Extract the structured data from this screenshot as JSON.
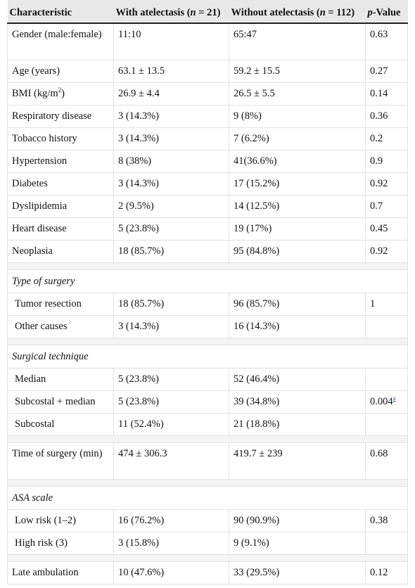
{
  "header": {
    "col1": "Characteristic",
    "col2_pre": "With atelectasis (",
    "col2_n": "n",
    "col2_post": " = 21)",
    "col3_pre": "Without atelectasis (",
    "col3_n": "n",
    "col3_post": " = 112)",
    "col4_p": "p",
    "col4_post": "-Value"
  },
  "rows": {
    "gender": {
      "label": "Gender (male:female)",
      "with": "11:10",
      "without": "65:47",
      "p": "0.63"
    },
    "age": {
      "label": "Age (years)",
      "with": "63.1 ± 13.5",
      "without": "59.2 ± 15.5",
      "p": "0.27"
    },
    "bmi": {
      "label_pre": "BMI (kg/m",
      "label_sup": "2",
      "label_post": ")",
      "with": "26.9 ± 4.4",
      "without": "26.5 ± 5.5",
      "p": "0.14"
    },
    "respiratory": {
      "label": "Respiratory disease",
      "with": "3 (14.3%)",
      "without": "9 (8%)",
      "p": "0.36"
    },
    "tobacco": {
      "label": "Tobacco history",
      "with": "3 (14.3%)",
      "without": "7 (6.2%)",
      "p": "0.2"
    },
    "hypertension": {
      "label": "Hypertension",
      "with": "8 (38%)",
      "without": "41(36.6%)",
      "p": "0.9"
    },
    "diabetes": {
      "label": "Diabetes",
      "with": "3 (14.3%)",
      "without": "17 (15.2%)",
      "p": "0.92"
    },
    "dyslipidemia": {
      "label": "Dyslipidemia",
      "with": "2 (9.5%)",
      "without": "14 (12.5%)",
      "p": "0.7"
    },
    "heart": {
      "label": "Heart disease",
      "with": "5 (23.8%)",
      "without": "19 (17%)",
      "p": "0.45"
    },
    "neoplasia": {
      "label": "Neoplasia",
      "with": "18 (85.7%)",
      "without": "95 (84.8%)",
      "p": "0.92"
    }
  },
  "surgery_type": {
    "title": "Type of surgery",
    "tumor": {
      "label": "Tumor resection",
      "with": "18 (85.7%)",
      "without": "96 (85.7%)",
      "p": "1"
    },
    "other": {
      "label": "Other causes",
      "with": "3 (14.3%)",
      "without": "16 (14.3%)",
      "p": ""
    }
  },
  "technique": {
    "title": "Surgical technique",
    "median": {
      "label": "Median",
      "with": "5 (23.8%)",
      "without": "52 (46.4%)",
      "p": ""
    },
    "subcostal_median": {
      "label": "Subcostal + median",
      "with": "5 (23.8%)",
      "without": "39 (34.8%)",
      "p": "0.004",
      "p_footnote": "a"
    },
    "subcostal": {
      "label": "Subcostal",
      "with": "11 (52.4%)",
      "without": "21 (18.8%)",
      "p": ""
    }
  },
  "time": {
    "label": "Time of surgery (min)",
    "with": "474 ± 306.3",
    "without": "419.7 ± 239",
    "p": "0.68"
  },
  "asa": {
    "title": "ASA scale",
    "low": {
      "label": "Low risk (1–2)",
      "with": "16 (76.2%)",
      "without": "90 (90.9%)",
      "p": "0.38"
    },
    "high": {
      "label": "High risk (3)",
      "with": "3 (15.8%)",
      "without": "9 (9.1%)",
      "p": ""
    }
  },
  "ambulation": {
    "label": "Late ambulation",
    "with": "10 (47.6%)",
    "without": "33 (29.5%)",
    "p": "0.12"
  }
}
